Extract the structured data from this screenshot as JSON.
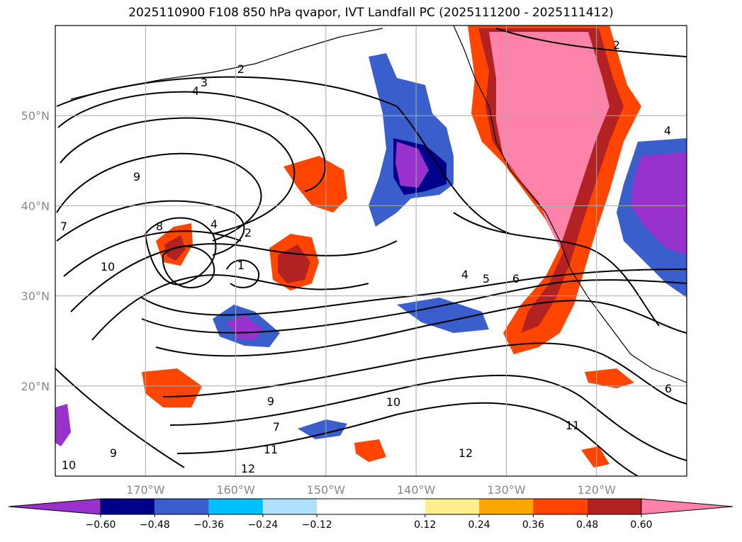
{
  "chart_data": {
    "type": "heatmap",
    "title": "2025110900 F108 850 hPa qvapor, IVT Landfall PC (2025111200 - 2025111412)",
    "x_ticks": [
      "170°W",
      "160°W",
      "150°W",
      "140°W",
      "130°W",
      "120°W"
    ],
    "y_ticks": [
      "50°N",
      "40°N",
      "30°N",
      "20°N"
    ],
    "xlim": [
      -180,
      -110
    ],
    "ylim": [
      10,
      60
    ],
    "grid": true,
    "colorbar": {
      "orientation": "horizontal",
      "extend": "both",
      "levels": [
        -0.72,
        -0.6,
        -0.48,
        -0.36,
        -0.24,
        -0.12,
        0.12,
        0.24,
        0.36,
        0.48,
        0.6,
        0.72
      ],
      "colors": [
        "#9932cc",
        "#00008b",
        "#3a5fcd",
        "#00bfff",
        "#b0e2ff",
        "#ffffff",
        "#fff08f",
        "#ffa500",
        "#ff4500",
        "#b22222",
        "#ff82ab"
      ],
      "tick_labels": [
        "−0.60",
        "−0.48",
        "−0.36",
        "−0.24",
        "−0.12",
        "0.12",
        "0.24",
        "0.36",
        "0.48",
        "0.60"
      ]
    },
    "contour_labels": [
      "2",
      "3",
      "4",
      "9",
      "7",
      "8",
      "4",
      "2",
      "1",
      "10",
      "4",
      "5",
      "6",
      "2",
      "11",
      "10",
      "7",
      "9",
      "12",
      "11",
      "10",
      "9",
      "12",
      "6",
      "4"
    ]
  }
}
